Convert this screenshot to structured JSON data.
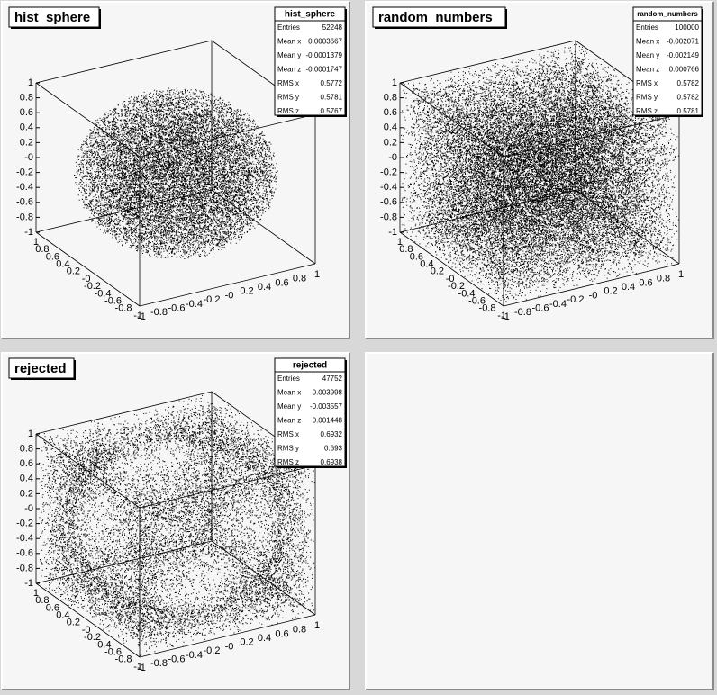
{
  "pads": [
    {
      "title": "hist_sphere",
      "stats": {
        "title": "hist_sphere",
        "rows": [
          [
            "Entries",
            "52248"
          ],
          [
            "Mean x",
            "0.0003667"
          ],
          [
            "Mean y",
            "-0.0001379"
          ],
          [
            "Mean z",
            "-0.0001747"
          ],
          [
            "RMS x",
            "0.5772"
          ],
          [
            "RMS y",
            "0.5781"
          ],
          [
            "RMS z",
            "0.5767"
          ]
        ]
      },
      "axes": {
        "z": [
          "1",
          "0.8",
          "0.6",
          "0.4",
          "0.2",
          "-0",
          "-0.2",
          "-0.4",
          "-0.6",
          "-0.8",
          "-1"
        ],
        "y": [
          "1",
          "0.8",
          "0.6",
          "0.4",
          "0.2",
          "-0",
          "-0.2",
          "-0.4",
          "-0.6",
          "-0.8",
          "-1"
        ],
        "x": [
          "-1",
          "-0.8",
          "-0.6",
          "-0.4",
          "-0.2",
          "-0",
          "0.2",
          "0.4",
          "0.6",
          "0.8",
          "1"
        ]
      }
    },
    {
      "title": "random_numbers",
      "stats": {
        "title": "random_numbers",
        "rows": [
          [
            "Entries",
            "100000"
          ],
          [
            "Mean x",
            "-0.002071"
          ],
          [
            "Mean y",
            "-0.002149"
          ],
          [
            "Mean z",
            "0.000766"
          ],
          [
            "RMS x",
            "0.5782"
          ],
          [
            "RMS y",
            "0.5782"
          ],
          [
            "RMS z",
            "0.5781"
          ]
        ]
      },
      "axes": {
        "z": [
          "1",
          "0.8",
          "0.6",
          "0.4",
          "0.2",
          "-0",
          "-0.2",
          "-0.4",
          "-0.6",
          "-0.8",
          "-1"
        ],
        "y": [
          "1",
          "0.8",
          "0.6",
          "0.4",
          "0.2",
          "-0",
          "-0.2",
          "-0.4",
          "-0.6",
          "-0.8",
          "-1"
        ],
        "x": [
          "-1",
          "-0.8",
          "-0.6",
          "-0.4",
          "-0.2",
          "-0",
          "0.2",
          "0.4",
          "0.6",
          "0.8",
          "1"
        ]
      }
    },
    {
      "title": "rejected",
      "stats": {
        "title": "rejected",
        "rows": [
          [
            "Entries",
            "47752"
          ],
          [
            "Mean x",
            "-0.003998"
          ],
          [
            "Mean y",
            "-0.003557"
          ],
          [
            "Mean z",
            "0.001448"
          ],
          [
            "RMS x",
            "0.6932"
          ],
          [
            "RMS y",
            "0.693"
          ],
          [
            "RMS z",
            "0.6938"
          ]
        ]
      },
      "axes": {
        "z": [
          "1",
          "0.8",
          "0.6",
          "0.4",
          "0.2",
          "-0",
          "-0.2",
          "-0.4",
          "-0.6",
          "-0.8",
          "-1"
        ],
        "y": [
          "1",
          "0.8",
          "0.6",
          "0.4",
          "0.2",
          "-0",
          "-0.2",
          "-0.4",
          "-0.6",
          "-0.8",
          "-1"
        ],
        "x": [
          "-1",
          "-0.8",
          "-0.6",
          "-0.4",
          "-0.2",
          "-0",
          "0.2",
          "0.4",
          "0.6",
          "0.8",
          "1"
        ]
      }
    }
  ]
}
